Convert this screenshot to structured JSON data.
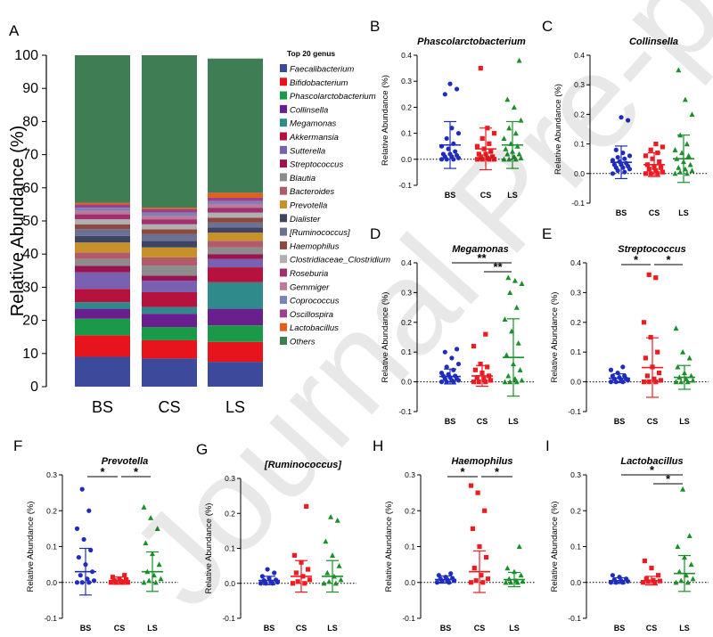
{
  "watermark": "Journal Pre-proof",
  "chart_data": [
    {
      "panel": "A",
      "type": "bar",
      "stacked": true,
      "legend_title": "Top 20 genus",
      "ylabel": "Relative Abundance (%)",
      "ylim": [
        0,
        100
      ],
      "yticks": [
        "0",
        "10",
        "20",
        "30",
        "40",
        "50",
        "60",
        "70",
        "80",
        "90",
        "100"
      ],
      "categories": [
        "BS",
        "CS",
        "LS"
      ],
      "series": [
        {
          "name": "Faecalibacterium",
          "color": "#3b4a9a",
          "values": [
            9.0,
            8.5,
            7.5
          ]
        },
        {
          "name": "Bifidobacterium",
          "color": "#e8141b",
          "values": [
            6.5,
            5.5,
            6.0
          ]
        },
        {
          "name": "Phascolarctobacterium",
          "color": "#1a9a49",
          "values": [
            5.0,
            4.0,
            5.0
          ]
        },
        {
          "name": "Collinsella",
          "color": "#6a1f8e",
          "values": [
            3.0,
            4.0,
            5.0
          ]
        },
        {
          "name": "Megamonas",
          "color": "#2f8b8b",
          "values": [
            2.0,
            2.0,
            8.0
          ]
        },
        {
          "name": "Akkermansia",
          "color": "#b5123d",
          "values": [
            4.0,
            4.5,
            4.5
          ]
        },
        {
          "name": "Sutterella",
          "color": "#7a60b0",
          "values": [
            5.0,
            3.5,
            2.5
          ]
        },
        {
          "name": "Streptococcus",
          "color": "#9a1450",
          "values": [
            2.0,
            1.5,
            1.5
          ]
        },
        {
          "name": "Blautia",
          "color": "#8c8c8c",
          "values": [
            2.0,
            3.0,
            2.0
          ]
        },
        {
          "name": "Bacteroides",
          "color": "#b05a6a",
          "values": [
            2.0,
            2.5,
            2.0
          ]
        },
        {
          "name": "Prevotella",
          "color": "#c8902a",
          "values": [
            3.0,
            3.0,
            2.5
          ]
        },
        {
          "name": "Dialister",
          "color": "#3e4563",
          "values": [
            2.0,
            2.0,
            1.5
          ]
        },
        {
          "name": "[Ruminococcus]",
          "color": "#6b7194",
          "values": [
            2.0,
            2.0,
            1.5
          ]
        },
        {
          "name": "Haemophilus",
          "color": "#8a4a40",
          "values": [
            1.5,
            1.5,
            1.5
          ]
        },
        {
          "name": "Clostridiaceae_Clostridium",
          "color": "#b0b0b0",
          "values": [
            1.5,
            1.5,
            1.5
          ]
        },
        {
          "name": "Roseburia",
          "color": "#a0306e",
          "values": [
            1.5,
            1.5,
            1.5
          ]
        },
        {
          "name": "Gemmiger",
          "color": "#c07898",
          "values": [
            1.0,
            1.0,
            1.0
          ]
        },
        {
          "name": "Coprococcus",
          "color": "#7c82b8",
          "values": [
            1.0,
            1.0,
            1.0
          ]
        },
        {
          "name": "Oscillospira",
          "color": "#9d3f8a",
          "values": [
            1.0,
            1.0,
            1.0
          ]
        },
        {
          "name": "Lactobacillus",
          "color": "#e0601e",
          "values": [
            0.5,
            0.5,
            1.5
          ]
        },
        {
          "name": "Others",
          "color": "#3f7d55",
          "values": [
            44.5,
            46.0,
            40.5
          ]
        }
      ]
    },
    {
      "panel": "B",
      "type": "scatter",
      "title": "Phascolarctobacterium",
      "ylabel": "Relative Abundance (%)",
      "ylim": [
        -0.1,
        0.4
      ],
      "yticks": [
        "-0.1",
        "0.0",
        "0.1",
        "0.2",
        "0.3",
        "0.4"
      ],
      "categories": [
        "BS",
        "CS",
        "LS"
      ],
      "groups": [
        {
          "name": "BS",
          "color": "#1f2dbf",
          "marker": "circle",
          "mean": 0.055,
          "sd": 0.09,
          "points": [
            0.0,
            0.0,
            0.0,
            0.005,
            0.01,
            0.01,
            0.015,
            0.02,
            0.02,
            0.03,
            0.04,
            0.05,
            0.06,
            0.08,
            0.1,
            0.12,
            0.25,
            0.27,
            0.29
          ]
        },
        {
          "name": "CS",
          "color": "#ee1b22",
          "marker": "square",
          "mean": 0.04,
          "sd": 0.08,
          "points": [
            0.0,
            0.0,
            0.0,
            0.0,
            0.005,
            0.01,
            0.01,
            0.02,
            0.02,
            0.03,
            0.04,
            0.05,
            0.06,
            0.08,
            0.1,
            0.12,
            0.35
          ]
        },
        {
          "name": "LS",
          "color": "#1a8f2a",
          "marker": "triangle",
          "mean": 0.055,
          "sd": 0.09,
          "points": [
            0.0,
            0.0,
            0.0,
            0.005,
            0.01,
            0.02,
            0.02,
            0.03,
            0.04,
            0.05,
            0.06,
            0.08,
            0.1,
            0.12,
            0.15,
            0.2,
            0.23,
            0.38
          ]
        }
      ],
      "significance": []
    },
    {
      "panel": "C",
      "type": "scatter",
      "title": "Collinsella",
      "ylabel": "Relative Abundance (%)",
      "ylim": [
        -0.1,
        0.4
      ],
      "yticks": [
        "-0.1",
        "0.0",
        "0.1",
        "0.2",
        "0.3",
        "0.4"
      ],
      "categories": [
        "BS",
        "CS",
        "LS"
      ],
      "groups": [
        {
          "name": "BS",
          "color": "#1f2dbf",
          "marker": "circle",
          "mean": 0.038,
          "sd": 0.055,
          "points": [
            0.0,
            0.005,
            0.01,
            0.015,
            0.02,
            0.02,
            0.025,
            0.03,
            0.03,
            0.035,
            0.04,
            0.045,
            0.05,
            0.055,
            0.06,
            0.07,
            0.08,
            0.18,
            0.19
          ]
        },
        {
          "name": "CS",
          "color": "#ee1b22",
          "marker": "square",
          "mean": 0.03,
          "sd": 0.04,
          "points": [
            0.0,
            0.0,
            0.0,
            0.005,
            0.01,
            0.015,
            0.02,
            0.02,
            0.03,
            0.04,
            0.05,
            0.06,
            0.07,
            0.08,
            0.09,
            0.1
          ]
        },
        {
          "name": "LS",
          "color": "#1a8f2a",
          "marker": "triangle",
          "mean": 0.05,
          "sd": 0.08,
          "points": [
            0.0,
            0.0,
            0.005,
            0.01,
            0.015,
            0.02,
            0.03,
            0.04,
            0.05,
            0.06,
            0.07,
            0.08,
            0.1,
            0.13,
            0.2,
            0.25,
            0.35
          ]
        }
      ],
      "significance": []
    },
    {
      "panel": "D",
      "type": "scatter",
      "title": "Megamonas",
      "ylabel": "Relative Abundance (%)",
      "ylim": [
        -0.1,
        0.4
      ],
      "yticks": [
        "-0.1",
        "0.0",
        "0.1",
        "0.2",
        "0.3",
        "0.4"
      ],
      "categories": [
        "BS",
        "CS",
        "LS"
      ],
      "groups": [
        {
          "name": "BS",
          "color": "#1f2dbf",
          "marker": "circle",
          "mean": 0.018,
          "sd": 0.025,
          "points": [
            0.0,
            0.0,
            0.0,
            0.005,
            0.005,
            0.01,
            0.01,
            0.015,
            0.02,
            0.02,
            0.025,
            0.03,
            0.04,
            0.05,
            0.06,
            0.08,
            0.1,
            0.11
          ]
        },
        {
          "name": "CS",
          "color": "#ee1b22",
          "marker": "square",
          "mean": 0.02,
          "sd": 0.035,
          "points": [
            0.0,
            0.0,
            0.0,
            0.005,
            0.01,
            0.015,
            0.02,
            0.03,
            0.04,
            0.05,
            0.06,
            0.12,
            0.16
          ]
        },
        {
          "name": "LS",
          "color": "#1a8f2a",
          "marker": "triangle",
          "mean": 0.082,
          "sd": 0.13,
          "points": [
            0.0,
            0.0,
            0.0,
            0.005,
            0.01,
            0.02,
            0.04,
            0.06,
            0.09,
            0.13,
            0.17,
            0.21,
            0.25,
            0.3,
            0.33,
            0.34,
            0.35
          ]
        }
      ],
      "significance": [
        {
          "from": "BS",
          "to": "LS",
          "label": "**"
        },
        {
          "from": "CS",
          "to": "LS",
          "label": "**"
        }
      ]
    },
    {
      "panel": "E",
      "type": "scatter",
      "title": "Streptococcus",
      "ylabel": "Relative Abundance (%)",
      "ylim": [
        -0.1,
        0.4
      ],
      "yticks": [
        "-0.1",
        "0.0",
        "0.1",
        "0.2",
        "0.3",
        "0.4"
      ],
      "categories": [
        "BS",
        "CS",
        "LS"
      ],
      "groups": [
        {
          "name": "BS",
          "color": "#1f2dbf",
          "marker": "circle",
          "mean": 0.012,
          "sd": 0.015,
          "points": [
            0.0,
            0.0,
            0.0,
            0.005,
            0.005,
            0.01,
            0.01,
            0.015,
            0.02,
            0.02,
            0.03,
            0.04,
            0.05
          ]
        },
        {
          "name": "CS",
          "color": "#ee1b22",
          "marker": "square",
          "mean": 0.048,
          "sd": 0.1,
          "points": [
            0.0,
            0.0,
            0.0,
            0.005,
            0.01,
            0.02,
            0.03,
            0.05,
            0.08,
            0.1,
            0.15,
            0.2,
            0.35,
            0.36
          ]
        },
        {
          "name": "LS",
          "color": "#1a8f2a",
          "marker": "triangle",
          "mean": 0.015,
          "sd": 0.04,
          "points": [
            0.0,
            0.0,
            0.0,
            0.005,
            0.01,
            0.015,
            0.02,
            0.03,
            0.05,
            0.08,
            0.1,
            0.18
          ]
        }
      ],
      "significance": [
        {
          "from": "BS",
          "to": "CS",
          "label": "*"
        },
        {
          "from": "CS",
          "to": "LS",
          "label": "*"
        }
      ]
    },
    {
      "panel": "F",
      "type": "scatter",
      "title": "Prevotella",
      "ylabel": "Relative Abundance (%)",
      "ylim": [
        -0.1,
        0.3
      ],
      "yticks": [
        "-0.1",
        "0.0",
        "0.1",
        "0.2",
        "0.3"
      ],
      "categories": [
        "BS",
        "CS",
        "LS"
      ],
      "groups": [
        {
          "name": "BS",
          "color": "#1f2dbf",
          "marker": "circle",
          "mean": 0.03,
          "sd": 0.065,
          "points": [
            0.0,
            0.0,
            0.0,
            0.005,
            0.01,
            0.02,
            0.03,
            0.05,
            0.07,
            0.09,
            0.12,
            0.15,
            0.2,
            0.26
          ]
        },
        {
          "name": "CS",
          "color": "#ee1b22",
          "marker": "square",
          "mean": 0.005,
          "sd": 0.01,
          "points": [
            0.0,
            0.0,
            0.0,
            0.0,
            0.003,
            0.005,
            0.008,
            0.01,
            0.015,
            0.02
          ]
        },
        {
          "name": "LS",
          "color": "#1a8f2a",
          "marker": "triangle",
          "mean": 0.03,
          "sd": 0.055,
          "points": [
            0.0,
            0.0,
            0.005,
            0.01,
            0.02,
            0.03,
            0.05,
            0.08,
            0.11,
            0.15,
            0.18,
            0.21
          ]
        }
      ],
      "significance": [
        {
          "from": "BS",
          "to": "CS",
          "label": "*"
        },
        {
          "from": "CS",
          "to": "LS",
          "label": "*"
        }
      ]
    },
    {
      "panel": "G",
      "type": "scatter",
      "title": "[Ruminococcus]",
      "ylabel": "Relative Abundance (%)",
      "ylim": [
        -0.1,
        0.3
      ],
      "yticks": [
        "-0.1",
        "0.0",
        "0.1",
        "0.2",
        "0.3"
      ],
      "categories": [
        "BS",
        "CS",
        "LS"
      ],
      "groups": [
        {
          "name": "BS",
          "color": "#1f2dbf",
          "marker": "circle",
          "mean": 0.008,
          "sd": 0.012,
          "points": [
            0.0,
            0.0,
            0.0,
            0.003,
            0.005,
            0.008,
            0.01,
            0.015,
            0.02,
            0.03,
            0.04
          ]
        },
        {
          "name": "CS",
          "color": "#ee1b22",
          "marker": "square",
          "mean": 0.02,
          "sd": 0.045,
          "points": [
            0.0,
            0.0,
            0.005,
            0.01,
            0.02,
            0.03,
            0.04,
            0.06,
            0.08,
            0.22
          ]
        },
        {
          "name": "LS",
          "color": "#1a8f2a",
          "marker": "triangle",
          "mean": 0.02,
          "sd": 0.045,
          "points": [
            0.0,
            0.0,
            0.005,
            0.01,
            0.02,
            0.03,
            0.05,
            0.08,
            0.12,
            0.18,
            0.19
          ]
        }
      ],
      "significance": []
    },
    {
      "panel": "H",
      "type": "scatter",
      "title": "Haemophilus",
      "ylabel": "Relative Abundance (%)",
      "ylim": [
        -0.1,
        0.3
      ],
      "yticks": [
        "-0.1",
        "0.0",
        "0.1",
        "0.2",
        "0.3"
      ],
      "categories": [
        "BS",
        "CS",
        "LS"
      ],
      "groups": [
        {
          "name": "BS",
          "color": "#1f2dbf",
          "marker": "circle",
          "mean": 0.008,
          "sd": 0.01,
          "points": [
            0.0,
            0.0,
            0.003,
            0.005,
            0.008,
            0.01,
            0.012,
            0.015,
            0.02,
            0.025
          ]
        },
        {
          "name": "CS",
          "color": "#ee1b22",
          "marker": "square",
          "mean": 0.03,
          "sd": 0.058,
          "points": [
            0.0,
            0.0,
            0.005,
            0.01,
            0.02,
            0.04,
            0.07,
            0.1,
            0.15,
            0.2,
            0.25,
            0.27
          ]
        },
        {
          "name": "LS",
          "color": "#1a8f2a",
          "marker": "triangle",
          "mean": 0.008,
          "sd": 0.02,
          "points": [
            0.0,
            0.0,
            0.0,
            0.003,
            0.005,
            0.01,
            0.02,
            0.03,
            0.04,
            0.1
          ]
        }
      ],
      "significance": [
        {
          "from": "BS",
          "to": "CS",
          "label": "*"
        },
        {
          "from": "CS",
          "to": "LS",
          "label": "*"
        }
      ]
    },
    {
      "panel": "I",
      "type": "scatter",
      "title": "Lactobacillus",
      "ylabel": "Relative Abundance (%)",
      "ylim": [
        -0.1,
        0.3
      ],
      "yticks": [
        "-0.1",
        "0.0",
        "0.1",
        "0.2",
        "0.3"
      ],
      "categories": [
        "BS",
        "CS",
        "LS"
      ],
      "groups": [
        {
          "name": "BS",
          "color": "#1f2dbf",
          "marker": "circle",
          "mean": 0.005,
          "sd": 0.008,
          "points": [
            0.0,
            0.0,
            0.0,
            0.003,
            0.005,
            0.008,
            0.01,
            0.015,
            0.02
          ]
        },
        {
          "name": "CS",
          "color": "#ee1b22",
          "marker": "square",
          "mean": 0.005,
          "sd": 0.012,
          "points": [
            0.0,
            0.0,
            0.002,
            0.004,
            0.006,
            0.01,
            0.02,
            0.04,
            0.06
          ]
        },
        {
          "name": "LS",
          "color": "#1a8f2a",
          "marker": "triangle",
          "mean": 0.025,
          "sd": 0.05,
          "points": [
            0.0,
            0.0,
            0.005,
            0.01,
            0.02,
            0.03,
            0.05,
            0.07,
            0.1,
            0.13,
            0.26
          ]
        }
      ],
      "significance": [
        {
          "from": "BS",
          "to": "LS",
          "label": "*"
        },
        {
          "from": "CS",
          "to": "LS",
          "label": "*"
        }
      ]
    }
  ]
}
